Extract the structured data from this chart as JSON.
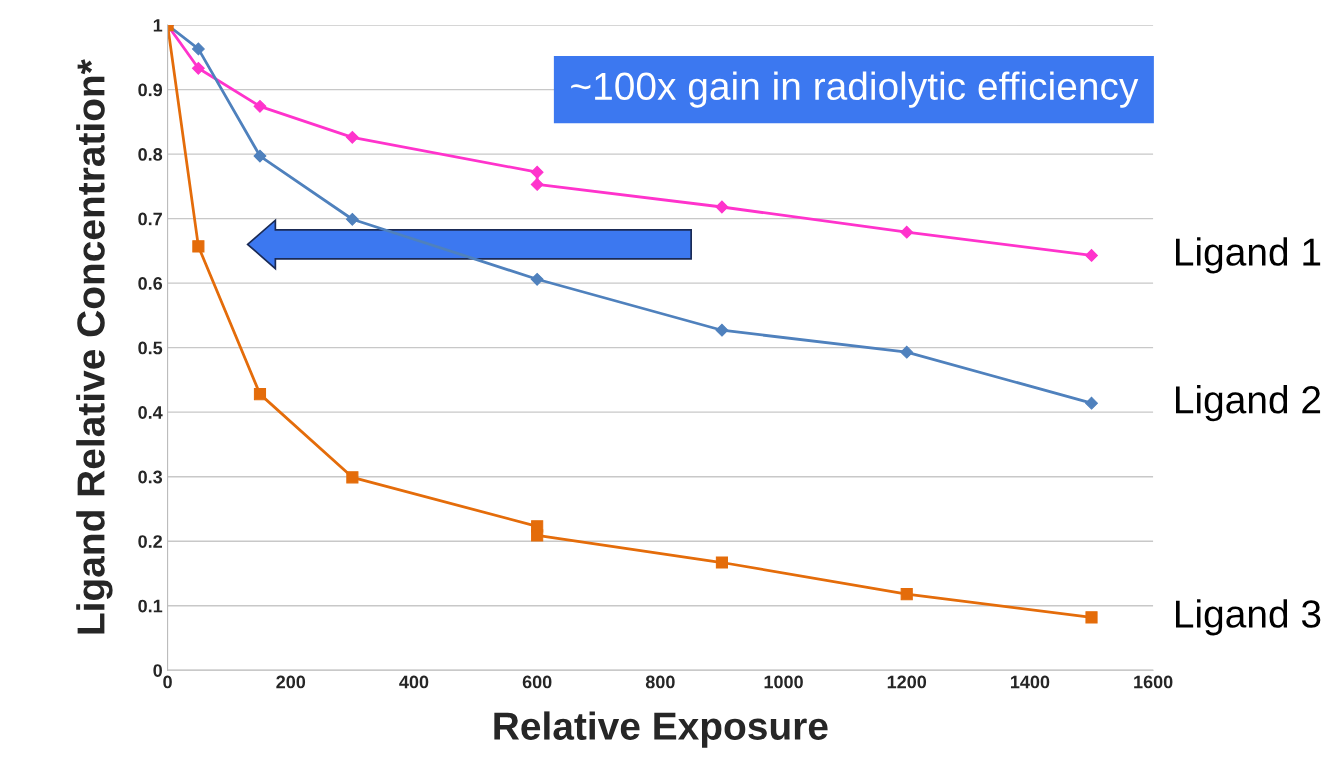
{
  "chart_data": {
    "type": "line",
    "xlabel": "Relative Exposure",
    "ylabel": "Ligand Relative Concentration*",
    "xlim": [
      0,
      1600
    ],
    "xticks": [
      0,
      200,
      400,
      600,
      800,
      1000,
      1200,
      1400,
      1600
    ],
    "ylim": [
      0,
      1
    ],
    "yticks": [
      0,
      0.1,
      0.2,
      0.3,
      0.4,
      0.5,
      0.6,
      0.7,
      0.8,
      0.9,
      1
    ],
    "grid": "y",
    "legend": false,
    "line_style": "solid",
    "annotations": [
      "~100x gain in radiolytic efficiency"
    ],
    "series": [
      {
        "name": "Ligand 1",
        "color": "#ff33cc",
        "marker": "diamond",
        "x": [
          0,
          50,
          150,
          300,
          600,
          600,
          900,
          1200,
          1500
        ],
        "values": [
          1,
          0.933,
          0.874,
          0.826,
          0.772,
          0.753,
          0.718,
          0.679,
          0.643
        ]
      },
      {
        "name": "Ligand 2",
        "color": "#4f81bd",
        "marker": "diamond",
        "x": [
          0,
          50,
          150,
          300,
          600,
          900,
          1200,
          1500
        ],
        "values": [
          1,
          0.963,
          0.797,
          0.699,
          0.606,
          0.527,
          0.493,
          0.414
        ]
      },
      {
        "name": "Ligand 3",
        "color": "#e46c0a",
        "marker": "square",
        "x": [
          0,
          50,
          150,
          300,
          600,
          600,
          900,
          1200,
          1500
        ],
        "values": [
          1,
          0.657,
          0.428,
          0.299,
          0.223,
          0.209,
          0.167,
          0.118,
          0.082
        ]
      }
    ]
  }
}
